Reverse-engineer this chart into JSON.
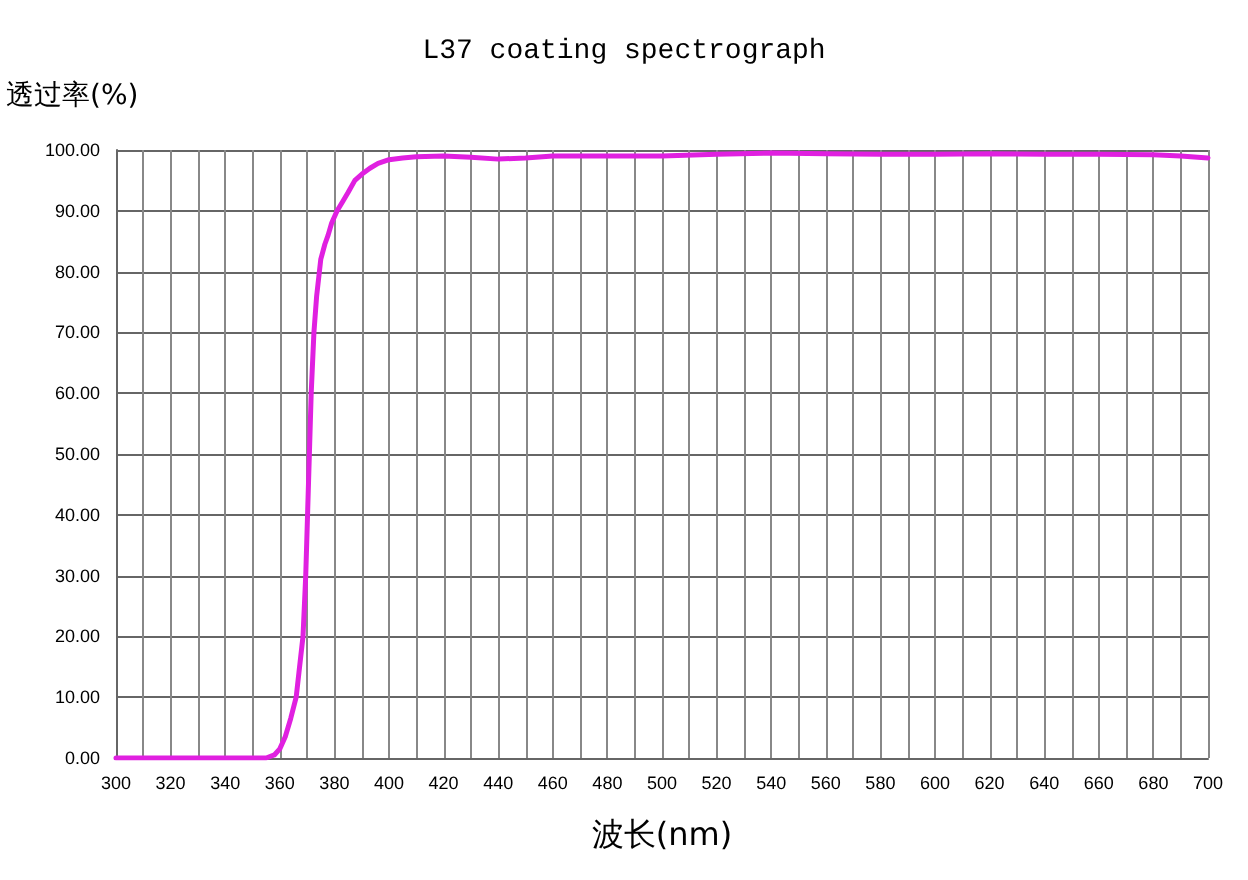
{
  "chart_data": {
    "type": "line",
    "title": "L37 coating spectrograph",
    "xlabel": "波长(nm)",
    "ylabel": "透过率(%)",
    "x": [
      300,
      320,
      340,
      350,
      355,
      358,
      360,
      362,
      364,
      366,
      367,
      368.5,
      369.5,
      370.5,
      371.5,
      372.5,
      373.5,
      375,
      376.5,
      377.7,
      379,
      381,
      383,
      385,
      387.5,
      390,
      393,
      396,
      400,
      405,
      410,
      420,
      430,
      440,
      450,
      460,
      480,
      500,
      520,
      540,
      560,
      580,
      600,
      620,
      640,
      660,
      680,
      690,
      700
    ],
    "series": [
      {
        "color": "#e020e0",
        "values": [
          0,
          0,
          0,
          0,
          0,
          0.5,
          1.5,
          3.5,
          6.5,
          10,
          14,
          20,
          30,
          45,
          60,
          70,
          76,
          82,
          84.5,
          86,
          88,
          90,
          91.5,
          93,
          95,
          96,
          97,
          97.8,
          98.4,
          98.7,
          98.9,
          99,
          98.8,
          98.5,
          98.7,
          99,
          99,
          99,
          99.3,
          99.5,
          99.4,
          99.3,
          99.3,
          99.4,
          99.3,
          99.3,
          99.2,
          99,
          98.7
        ]
      }
    ],
    "xlim": [
      300,
      700
    ],
    "ylim": [
      0,
      100
    ],
    "xticks": [
      300,
      {
        "value": 310,
        "label": null
      },
      320,
      {
        "value": 330,
        "label": null
      },
      340,
      {
        "value": 350,
        "label": null
      },
      360,
      {
        "value": 370,
        "label": null
      },
      380,
      {
        "value": 390,
        "label": null
      },
      400,
      {
        "value": 410,
        "label": null
      },
      420,
      {
        "value": 430,
        "label": null
      },
      440,
      {
        "value": 450,
        "label": null
      },
      460,
      {
        "value": 470,
        "label": null
      },
      480,
      {
        "value": 490,
        "label": null
      },
      500,
      {
        "value": 510,
        "label": null
      },
      520,
      {
        "value": 530,
        "label": null
      },
      540,
      {
        "value": 550,
        "label": null
      },
      560,
      {
        "value": 570,
        "label": null
      },
      580,
      {
        "value": 590,
        "label": null
      },
      600,
      {
        "value": 610,
        "label": null
      },
      620,
      {
        "value": 630,
        "label": null
      },
      640,
      {
        "value": 650,
        "label": null
      },
      660,
      {
        "value": 670,
        "label": null
      },
      680,
      {
        "value": 690,
        "label": null
      },
      700
    ],
    "yticks": [
      {
        "value": 0,
        "label": "0.00"
      },
      {
        "value": 10,
        "label": "10.00"
      },
      {
        "value": 20,
        "label": "20.00"
      },
      {
        "value": 30,
        "label": "30.00"
      },
      {
        "value": 40,
        "label": "40.00"
      },
      {
        "value": 50,
        "label": "50.00"
      },
      {
        "value": 60,
        "label": "60.00"
      },
      {
        "value": 70,
        "label": "70.00"
      },
      {
        "value": 80,
        "label": "80.00"
      },
      {
        "value": 90,
        "label": "90.00"
      },
      {
        "value": 100,
        "label": "100.00"
      }
    ],
    "grid": true,
    "marker": "none",
    "line_style": "solid"
  }
}
